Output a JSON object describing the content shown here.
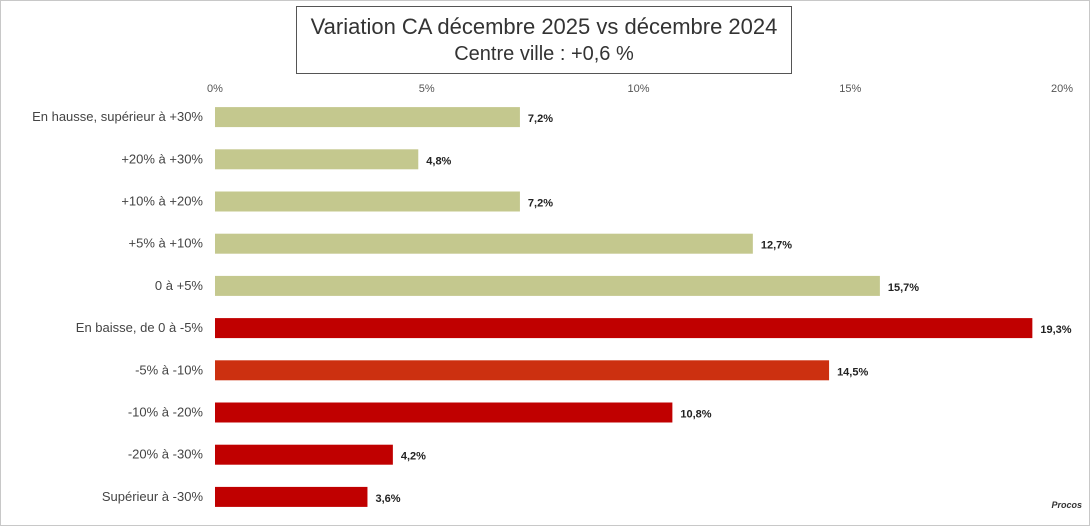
{
  "chart_data": {
    "type": "bar",
    "orientation": "horizontal",
    "title": "Variation CA décembre 2025 vs décembre 2024",
    "subtitle": "Centre ville  : +0,6 %",
    "categories": [
      "En hausse, supérieur à +30%",
      "+20% à +30%",
      "+10% à +20%",
      "+5% à +10%",
      "0 à +5%",
      "En baisse, de 0 à -5%",
      "-5% à -10%",
      "-10% à -20%",
      "-20% à -30%",
      "Supérieur à -30%"
    ],
    "values": [
      7.2,
      4.8,
      7.2,
      12.7,
      15.7,
      19.3,
      14.5,
      10.8,
      4.2,
      3.6
    ],
    "value_labels": [
      "7,2%",
      "4,8%",
      "7,2%",
      "12,7%",
      "15,7%",
      "19,3%",
      "14,5%",
      "10,8%",
      "4,2%",
      "3,6%"
    ],
    "bar_colors": [
      "#c4c88e",
      "#c4c88e",
      "#c4c88e",
      "#c4c88e",
      "#c4c88e",
      "#c00000",
      "#cc3010",
      "#c00000",
      "#c00000",
      "#c00000"
    ],
    "xlim": [
      0,
      20
    ],
    "xticks": [
      "0%",
      "5%",
      "10%",
      "15%",
      "20%"
    ],
    "xlabel": "",
    "ylabel": "",
    "grid": false,
    "legend": "none"
  },
  "logo_text": "Procos"
}
